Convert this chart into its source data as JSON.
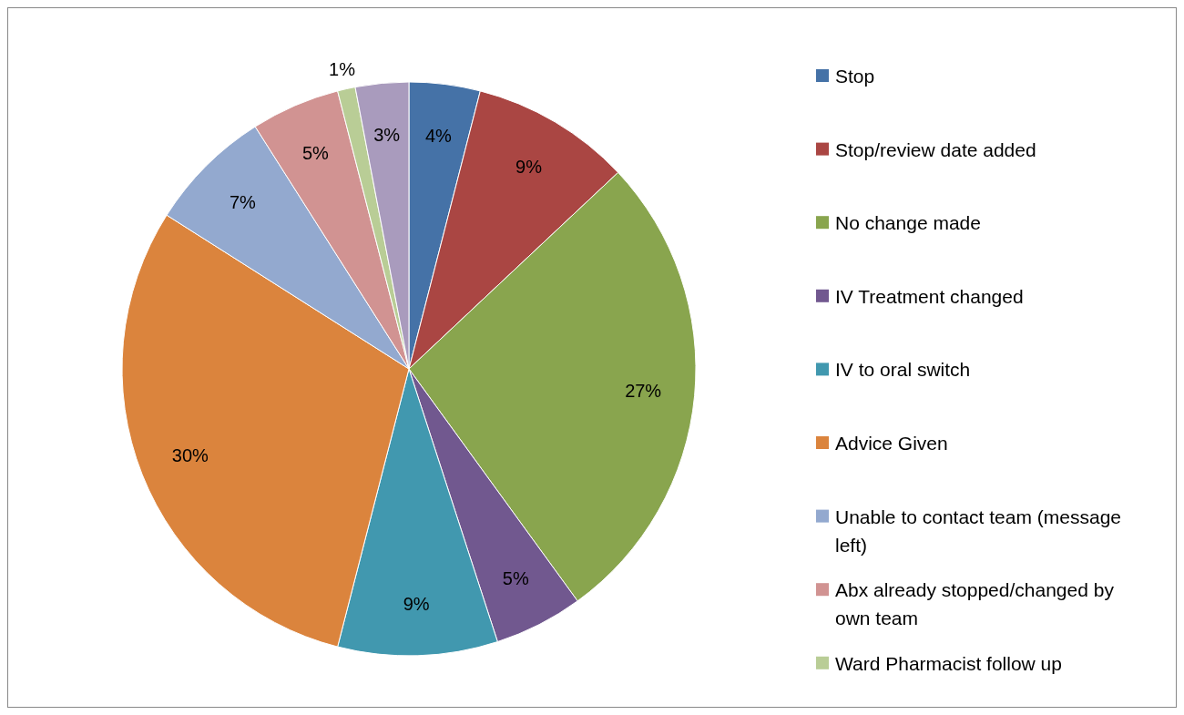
{
  "chart_data": {
    "type": "pie",
    "categories": [
      "Stop",
      "Stop/review date added",
      "No change made",
      "IV Treatment changed",
      "IV to oral switch",
      "Advice Given",
      "Unable to contact team (message left)",
      "Abx already stopped/changed by own team",
      "Ward Pharmacist follow up",
      null
    ],
    "values": [
      4,
      9,
      27,
      5,
      9,
      30,
      7,
      5,
      1,
      3
    ],
    "colors": [
      "#4572a7",
      "#aa4643",
      "#89a54e",
      "#71588f",
      "#4198af",
      "#db843d",
      "#93a9cf",
      "#d19392",
      "#b9cd96",
      "#a99bbd"
    ],
    "value_labels": [
      "4%",
      "9%",
      "27%",
      "5%",
      "9%",
      "30%",
      "7%",
      "5%",
      "1%",
      "3%"
    ],
    "legend": "right"
  }
}
